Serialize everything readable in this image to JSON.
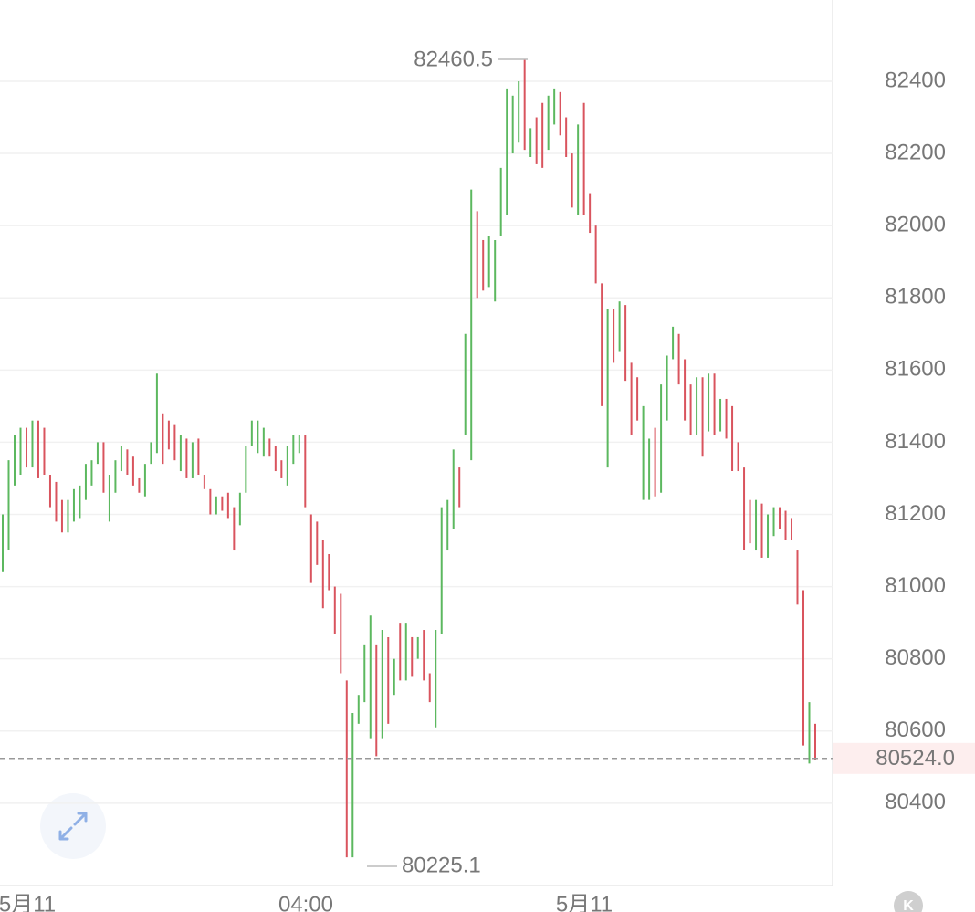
{
  "chart_data": {
    "type": "candlestick",
    "open": [
      81040,
      81100,
      81280,
      81310,
      81440,
      81330,
      81460,
      81440,
      81310,
      81290,
      81240,
      81150,
      81180,
      81190,
      81240,
      81280,
      81340,
      81400,
      81180,
      81260,
      81320,
      81380,
      81360,
      81300,
      81250,
      81340,
      81370,
      81480,
      81460,
      81450,
      81320,
      81410,
      81300,
      81410,
      81310,
      81270,
      81200,
      81250,
      81260,
      81220,
      81170,
      81260,
      81390,
      81370,
      81360,
      81410,
      81390,
      81350,
      81280,
      81340,
      81370,
      81420,
      81200,
      81180,
      81130,
      81090,
      81000,
      80980,
      80740,
      80250,
      80620,
      80680,
      80580,
      80840,
      80580,
      80860,
      80700,
      80900,
      80740,
      80860,
      80800,
      80880,
      80760,
      80610,
      80870,
      81100,
      81160,
      81330,
      81420,
      81350,
      82040,
      81960,
      81830,
      81790,
      81970,
      82030,
      82200,
      82230,
      82460,
      82190,
      82300,
      82340,
      82210,
      82280,
      82370,
      82300,
      82200,
      82030,
      82340,
      82090,
      82000,
      81840,
      81330,
      81770,
      81650,
      81780,
      81620,
      81580,
      81240,
      81240,
      81440,
      81260,
      81460,
      81630,
      81700,
      81630,
      81560,
      81420,
      81580,
      81430,
      81590,
      81430,
      81520,
      81500,
      81400,
      81330,
      81240,
      81100,
      81230,
      81080,
      81140,
      81220,
      81210,
      81190,
      81100,
      80990,
      80510,
      80620
    ],
    "close": [
      81200,
      81350,
      81420,
      81440,
      81330,
      81460,
      81300,
      81310,
      81220,
      81180,
      81150,
      81240,
      81270,
      81280,
      81340,
      81350,
      81400,
      81260,
      81310,
      81350,
      81390,
      81310,
      81280,
      81260,
      81340,
      81400,
      81590,
      81340,
      81380,
      81350,
      81420,
      81300,
      81400,
      81310,
      81270,
      81200,
      81250,
      81210,
      81190,
      81100,
      81260,
      81390,
      81460,
      81460,
      81440,
      81360,
      81320,
      81300,
      81390,
      81420,
      81420,
      81220,
      81010,
      81060,
      80940,
      80990,
      80870,
      80760,
      80250,
      80650,
      80700,
      80840,
      80920,
      80530,
      80880,
      80620,
      80800,
      80740,
      80900,
      80750,
      80860,
      80740,
      80680,
      80880,
      81220,
      81240,
      81380,
      81220,
      81700,
      82100,
      81800,
      81820,
      81970,
      81960,
      82160,
      82380,
      82360,
      82400,
      82210,
      82270,
      82170,
      82160,
      82360,
      82380,
      82250,
      82190,
      82050,
      82280,
      82030,
      81980,
      81840,
      81500,
      81770,
      81620,
      81790,
      81570,
      81420,
      81460,
      81500,
      81410,
      81250,
      81560,
      81640,
      81720,
      81560,
      81460,
      81420,
      81580,
      81360,
      81590,
      81420,
      81520,
      81410,
      81320,
      81320,
      81100,
      81120,
      81240,
      81080,
      81200,
      81220,
      81160,
      81130,
      81130,
      80950,
      80560,
      80680,
      80520
    ],
    "up_color": "#5cb85f",
    "down_color": "#d9545e",
    "x_labels": [
      "5月11",
      "04:00",
      "5月11"
    ],
    "ylim": [
      80172,
      82625
    ],
    "yticks": [
      80400,
      80600,
      80800,
      81000,
      81200,
      81400,
      81600,
      81800,
      82000,
      82200,
      82400
    ],
    "grid": true,
    "high_label": 82460.5,
    "low_label": 80225.1,
    "last_price": {
      "value": 80524,
      "label": "80524.0"
    },
    "logo": "K"
  }
}
